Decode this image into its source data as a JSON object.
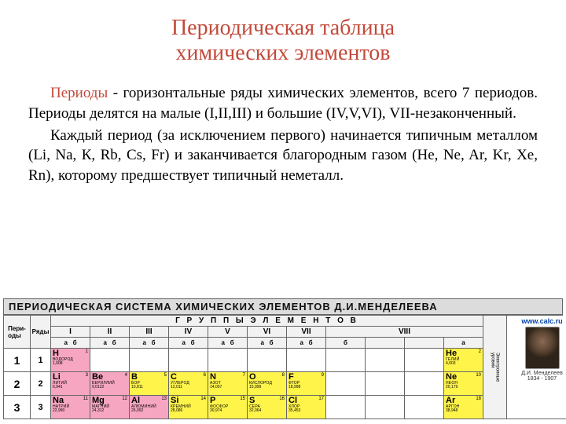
{
  "colors": {
    "title": "#c24a3a",
    "highlight": "#c24a3a",
    "body": "#222222",
    "pink": "#f7a6c1",
    "yellow": "#fff44a",
    "header_bg": "#dcdcdc",
    "grid_border": "#666666"
  },
  "title_line1": "Периодическая таблица",
  "title_line2": "химических элементов",
  "para1_lead": "Периоды",
  "para1_rest": " - горизонтальные ряды химических элементов, всего 7 периодов. Периоды делятся на малые (I,II,III) и большие (IV,V,VI), VII-незаконченный.",
  "para2": "Каждый период (за исключением первого) начинается типичным металлом (Li, Na, К, Rb, Cs, Fr)                  и заканчивается благородным   газом (He, Ne, Ar, Kr, Xe, Rn),   которому предшествует типичный неметалл.",
  "pt": {
    "header_bar": "ПЕРИОДИЧЕСКАЯ  СИСТЕМА  ХИМИЧЕСКИХ  ЭЛЕМЕНТОВ  Д.И.МЕНДЕЛЕЕВА",
    "col_period": "Пери-\nоды",
    "col_rows": "Ряды",
    "groups_title": "Г Р У П П Ы    Э Л Е М Е Н Т О В",
    "vert_right": "Электронные\nуровни",
    "group_numbers": [
      "I",
      "II",
      "III",
      "IV",
      "V",
      "VI",
      "VII",
      "VIII"
    ],
    "sub_ab_single": [
      "а",
      "б"
    ],
    "sub_ab_last": [
      "б",
      "а"
    ],
    "url": "www.calc.ru",
    "portrait_caption_1": "Д.И. Менделеев",
    "portrait_caption_2": "1834 - 1907",
    "periods": [
      {
        "period": "1",
        "row": "1",
        "cells": [
          {
            "sym": "H",
            "name": "ВОДОРОД",
            "mass": "1,008",
            "z": "1",
            "cls": "pink"
          },
          null,
          null,
          null,
          null,
          null,
          null,
          null,
          null,
          null,
          {
            "sym": "He",
            "name": "ГЕЛИЙ",
            "mass": "4,003",
            "z": "2",
            "cls": "yellow"
          }
        ]
      },
      {
        "period": "2",
        "row": "2",
        "cells": [
          {
            "sym": "Li",
            "name": "ЛИТИЙ",
            "mass": "6,941",
            "z": "3",
            "cls": "pink"
          },
          {
            "sym": "Be",
            "name": "БЕРИЛЛИЙ",
            "mass": "9,0122",
            "z": "4",
            "cls": "pink"
          },
          {
            "sym": "B",
            "name": "БОР",
            "mass": "10,811",
            "z": "5",
            "cls": "yellow"
          },
          {
            "sym": "C",
            "name": "УГЛЕРОД",
            "mass": "12,011",
            "z": "6",
            "cls": "yellow"
          },
          {
            "sym": "N",
            "name": "АЗОТ",
            "mass": "14,007",
            "z": "7",
            "cls": "yellow"
          },
          {
            "sym": "O",
            "name": "КИСЛОРОД",
            "mass": "15,999",
            "z": "8",
            "cls": "yellow"
          },
          {
            "sym": "F",
            "name": "ФТОР",
            "mass": "18,998",
            "z": "9",
            "cls": "yellow"
          },
          null,
          null,
          null,
          {
            "sym": "Ne",
            "name": "НЕОН",
            "mass": "20,179",
            "z": "10",
            "cls": "yellow"
          }
        ]
      },
      {
        "period": "3",
        "row": "3",
        "cells": [
          {
            "sym": "Na",
            "name": "НАТРИЙ",
            "mass": "22,990",
            "z": "11",
            "cls": "pink"
          },
          {
            "sym": "Mg",
            "name": "МАГНИЙ",
            "mass": "24,312",
            "z": "12",
            "cls": "pink"
          },
          {
            "sym": "Al",
            "name": "АЛЮМИНИЙ",
            "mass": "26,092",
            "z": "13",
            "cls": "pink"
          },
          {
            "sym": "Si",
            "name": "КРЕМНИЙ",
            "mass": "28,086",
            "z": "14",
            "cls": "yellow"
          },
          {
            "sym": "P",
            "name": "ФОСФОР",
            "mass": "30,974",
            "z": "15",
            "cls": "yellow"
          },
          {
            "sym": "S",
            "name": "СЕРА",
            "mass": "32,064",
            "z": "16",
            "cls": "yellow"
          },
          {
            "sym": "Cl",
            "name": "ХЛОР",
            "mass": "35,453",
            "z": "17",
            "cls": "yellow"
          },
          null,
          null,
          null,
          {
            "sym": "Ar",
            "name": "АРГОН",
            "mass": "38,948",
            "z": "18",
            "cls": "yellow"
          }
        ]
      }
    ]
  }
}
